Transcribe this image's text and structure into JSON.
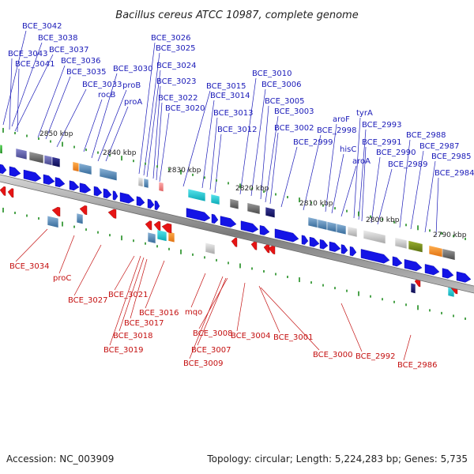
{
  "title": "Bacillus cereus ATCC 10987, complete genome",
  "footer": {
    "accession": "Accession: NC_003909",
    "topology": "Topology: circular; Length: 5,224,283 bp; Genes: 5,735"
  },
  "colors": {
    "forward_gene": "#1414e6",
    "reverse_gene": "#e61414",
    "top_label": "#1a1ab8",
    "bottom_label": "#c41010",
    "backbone": "#9a9a9a",
    "tick": "#1e8c1e"
  },
  "kbp_labels": [
    "2850 kbp",
    "2840 kbp",
    "2830 kbp",
    "2820 kbp",
    "2810 kbp",
    "2800 kbp",
    "2790 kbp"
  ],
  "top_labels": [
    "BCE_3042",
    "BCE_3038",
    "BCE_3043",
    "BCE_3037",
    "BCE_3041",
    "BCE_3036",
    "BCE_3035",
    "BCE_3030",
    "BCE_3033",
    "proB",
    "rocB",
    "proA",
    "BCE_3026",
    "BCE_3025",
    "BCE_3024",
    "BCE_3023",
    "BCE_3022",
    "BCE_3020",
    "BCE_3015",
    "BCE_3014",
    "BCE_3013",
    "BCE_3012",
    "BCE_3010",
    "BCE_3006",
    "BCE_3005",
    "BCE_3003",
    "BCE_3002",
    "BCE_2999",
    "BCE_2998",
    "aroF",
    "hisC",
    "aroA",
    "tyrA",
    "BCE_2993",
    "BCE_2991",
    "BCE_2990",
    "BCE_2989",
    "BCE_2988",
    "BCE_2987",
    "BCE_2985",
    "BCE_2984"
  ],
  "bottom_labels": [
    "BCE_3034",
    "proC",
    "BCE_3027",
    "BCE_3021",
    "BCE_3016",
    "BCE_3017",
    "BCE_3018",
    "BCE_3019",
    "mqo",
    "BCE_3008",
    "BCE_3007",
    "BCE_3009",
    "BCE_3004",
    "BCE_3001",
    "BCE_3000",
    "BCE_2992",
    "BCE_2986"
  ]
}
